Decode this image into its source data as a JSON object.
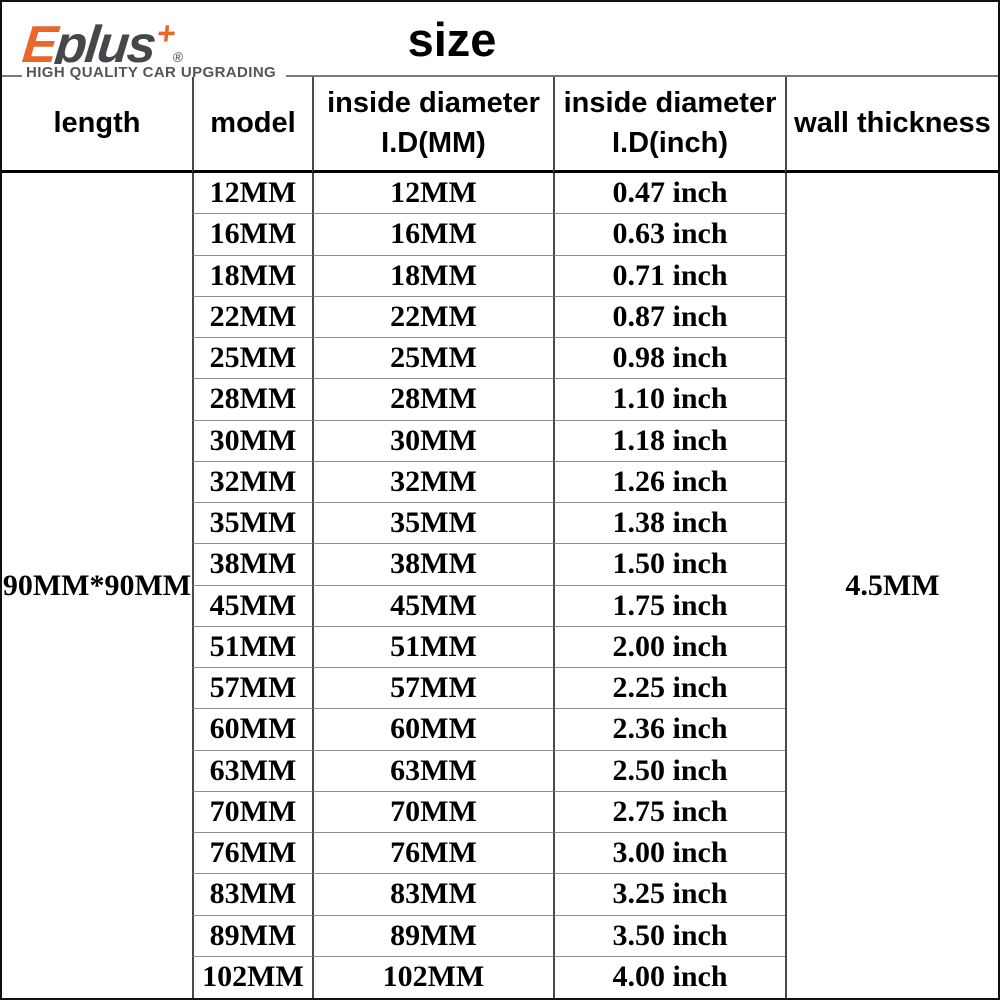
{
  "brand": {
    "logo": {
      "e": "E",
      "rest": "plus",
      "plus": "+",
      "registered": "®"
    },
    "tagline": "HIGH QUALITY CAR UPGRADING",
    "colors": {
      "orange": "#E8672B",
      "dark_gray": "#46474B"
    }
  },
  "title": "size",
  "table": {
    "headers": {
      "length": "length",
      "model": "model",
      "id_mm": {
        "line1": "inside diameter",
        "line2": "I.D(MM)"
      },
      "id_inch": {
        "line1": "inside diameter",
        "line2": "I.D(inch)"
      },
      "wall_thickness": "wall thickness"
    },
    "merged": {
      "length_value": "90MM*90MM",
      "wall_thickness_value": "4.5MM"
    },
    "rows": [
      {
        "model": "12MM",
        "id_mm": "12MM",
        "id_inch": "0.47 inch"
      },
      {
        "model": "16MM",
        "id_mm": "16MM",
        "id_inch": "0.63 inch"
      },
      {
        "model": "18MM",
        "id_mm": "18MM",
        "id_inch": "0.71 inch"
      },
      {
        "model": "22MM",
        "id_mm": "22MM",
        "id_inch": "0.87 inch"
      },
      {
        "model": "25MM",
        "id_mm": "25MM",
        "id_inch": "0.98 inch"
      },
      {
        "model": "28MM",
        "id_mm": "28MM",
        "id_inch": "1.10 inch"
      },
      {
        "model": "30MM",
        "id_mm": "30MM",
        "id_inch": "1.18 inch"
      },
      {
        "model": "32MM",
        "id_mm": "32MM",
        "id_inch": "1.26 inch"
      },
      {
        "model": "35MM",
        "id_mm": "35MM",
        "id_inch": "1.38 inch"
      },
      {
        "model": "38MM",
        "id_mm": "38MM",
        "id_inch": "1.50 inch"
      },
      {
        "model": "45MM",
        "id_mm": "45MM",
        "id_inch": "1.75 inch"
      },
      {
        "model": "51MM",
        "id_mm": "51MM",
        "id_inch": "2.00 inch"
      },
      {
        "model": "57MM",
        "id_mm": "57MM",
        "id_inch": "2.25 inch"
      },
      {
        "model": "60MM",
        "id_mm": "60MM",
        "id_inch": "2.36 inch"
      },
      {
        "model": "63MM",
        "id_mm": "63MM",
        "id_inch": "2.50 inch"
      },
      {
        "model": "70MM",
        "id_mm": "70MM",
        "id_inch": "2.75 inch"
      },
      {
        "model": "76MM",
        "id_mm": "76MM",
        "id_inch": "3.00 inch"
      },
      {
        "model": "83MM",
        "id_mm": "83MM",
        "id_inch": "3.25 inch"
      },
      {
        "model": "89MM",
        "id_mm": "89MM",
        "id_inch": "3.50 inch"
      },
      {
        "model": "102MM",
        "id_mm": "102MM",
        "id_inch": "4.00 inch"
      }
    ]
  }
}
